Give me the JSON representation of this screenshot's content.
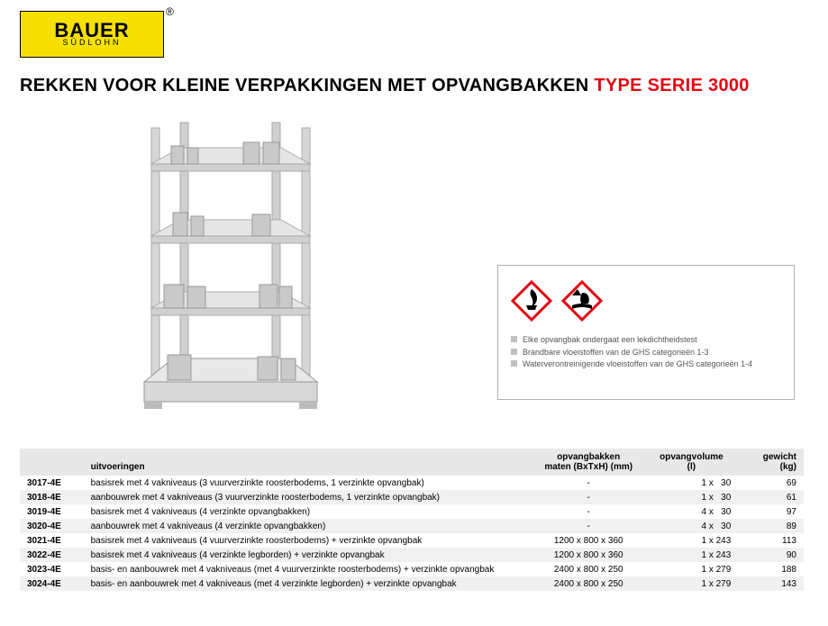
{
  "brand": {
    "name": "BAUER",
    "sub": "SÜDLOHN",
    "reg": "®",
    "bg_color": "#f5e000"
  },
  "title": {
    "part1": "REKKEN VOOR KLEINE VERPAKKINGEN MET OPVANGBAKKEN",
    "part2": "TYPE SERIE 3000",
    "color_black": "#000000",
    "color_red": "#e30613"
  },
  "product_image": {
    "alt": "Vierniveaus stelling met opvangbakken",
    "shelves": 4
  },
  "hazard_box": {
    "icons": [
      "flammable-icon",
      "environment-icon"
    ],
    "border_color": "#b0b0b0",
    "notes": [
      "Elke opvangbak ondergaat een lekdichtheidstest",
      "Brandbare vloeistoffen van de GHS categorieën 1-3",
      "Waterverontreinigende vloeistoffen van de GHS categorieën 1-4"
    ]
  },
  "table": {
    "headers": {
      "code": "",
      "desc": "uitvoeringen",
      "dim1": "opvangbakken",
      "dim2": "maten (BxTxH) (mm)",
      "vol1": "opvangvolume",
      "vol2": "(l)",
      "wt1": "gewicht",
      "wt2": "(kg)"
    },
    "header_bg": "#e8e8e8",
    "alt_row_bg": "#f0f0f0",
    "rows": [
      {
        "code": "3017-4E",
        "desc": "basisrek met 4 vakniveaus (3 vuurverzinkte roosterbodems, 1 verzinkte opvangbak)",
        "dim": "-",
        "vol": "1 x   30",
        "wt": "69"
      },
      {
        "code": "3018-4E",
        "desc": "aanbouwrek met 4 vakniveaus (3 vuurverzinkte roosterbodems, 1 verzinkte opvangbak)",
        "dim": "-",
        "vol": "1 x   30",
        "wt": "61"
      },
      {
        "code": "3019-4E",
        "desc": "basisrek met 4 vakniveaus (4 verzinkte opvangbakken)",
        "dim": "-",
        "vol": "4 x   30",
        "wt": "97"
      },
      {
        "code": "3020-4E",
        "desc": "aanbouwrek met 4 vakniveaus (4 verzinkte opvangbakken)",
        "dim": "-",
        "vol": "4 x   30",
        "wt": "89"
      },
      {
        "code": "3021-4E",
        "desc": "basisrek met 4 vakniveaus (4 vuurverzinkte roosterbodems) + verzinkte opvangbak",
        "dim": "1200 x 800 x 360",
        "vol": "1 x 243",
        "wt": "113"
      },
      {
        "code": "3022-4E",
        "desc": "basisrek met 4 vakniveaus (4 verzinkte legborden) + verzinkte opvangbak",
        "dim": "1200 x 800 x 360",
        "vol": "1 x 243",
        "wt": "90"
      },
      {
        "code": "3023-4E",
        "desc": "basis- en aanbouwrek met 4 vakniveaus (met 4 vuurverzinkte roosterbodems) + verzinkte opvangbak",
        "dim": "2400 x 800 x 250",
        "vol": "1 x 279",
        "wt": "188"
      },
      {
        "code": "3024-4E",
        "desc": "basis- en aanbouwrek met 4 vakniveaus (met 4 verzinkte legborden) + verzinkte opvangbak",
        "dim": "2400 x 800 x 250",
        "vol": "1 x 279",
        "wt": "143"
      }
    ]
  }
}
